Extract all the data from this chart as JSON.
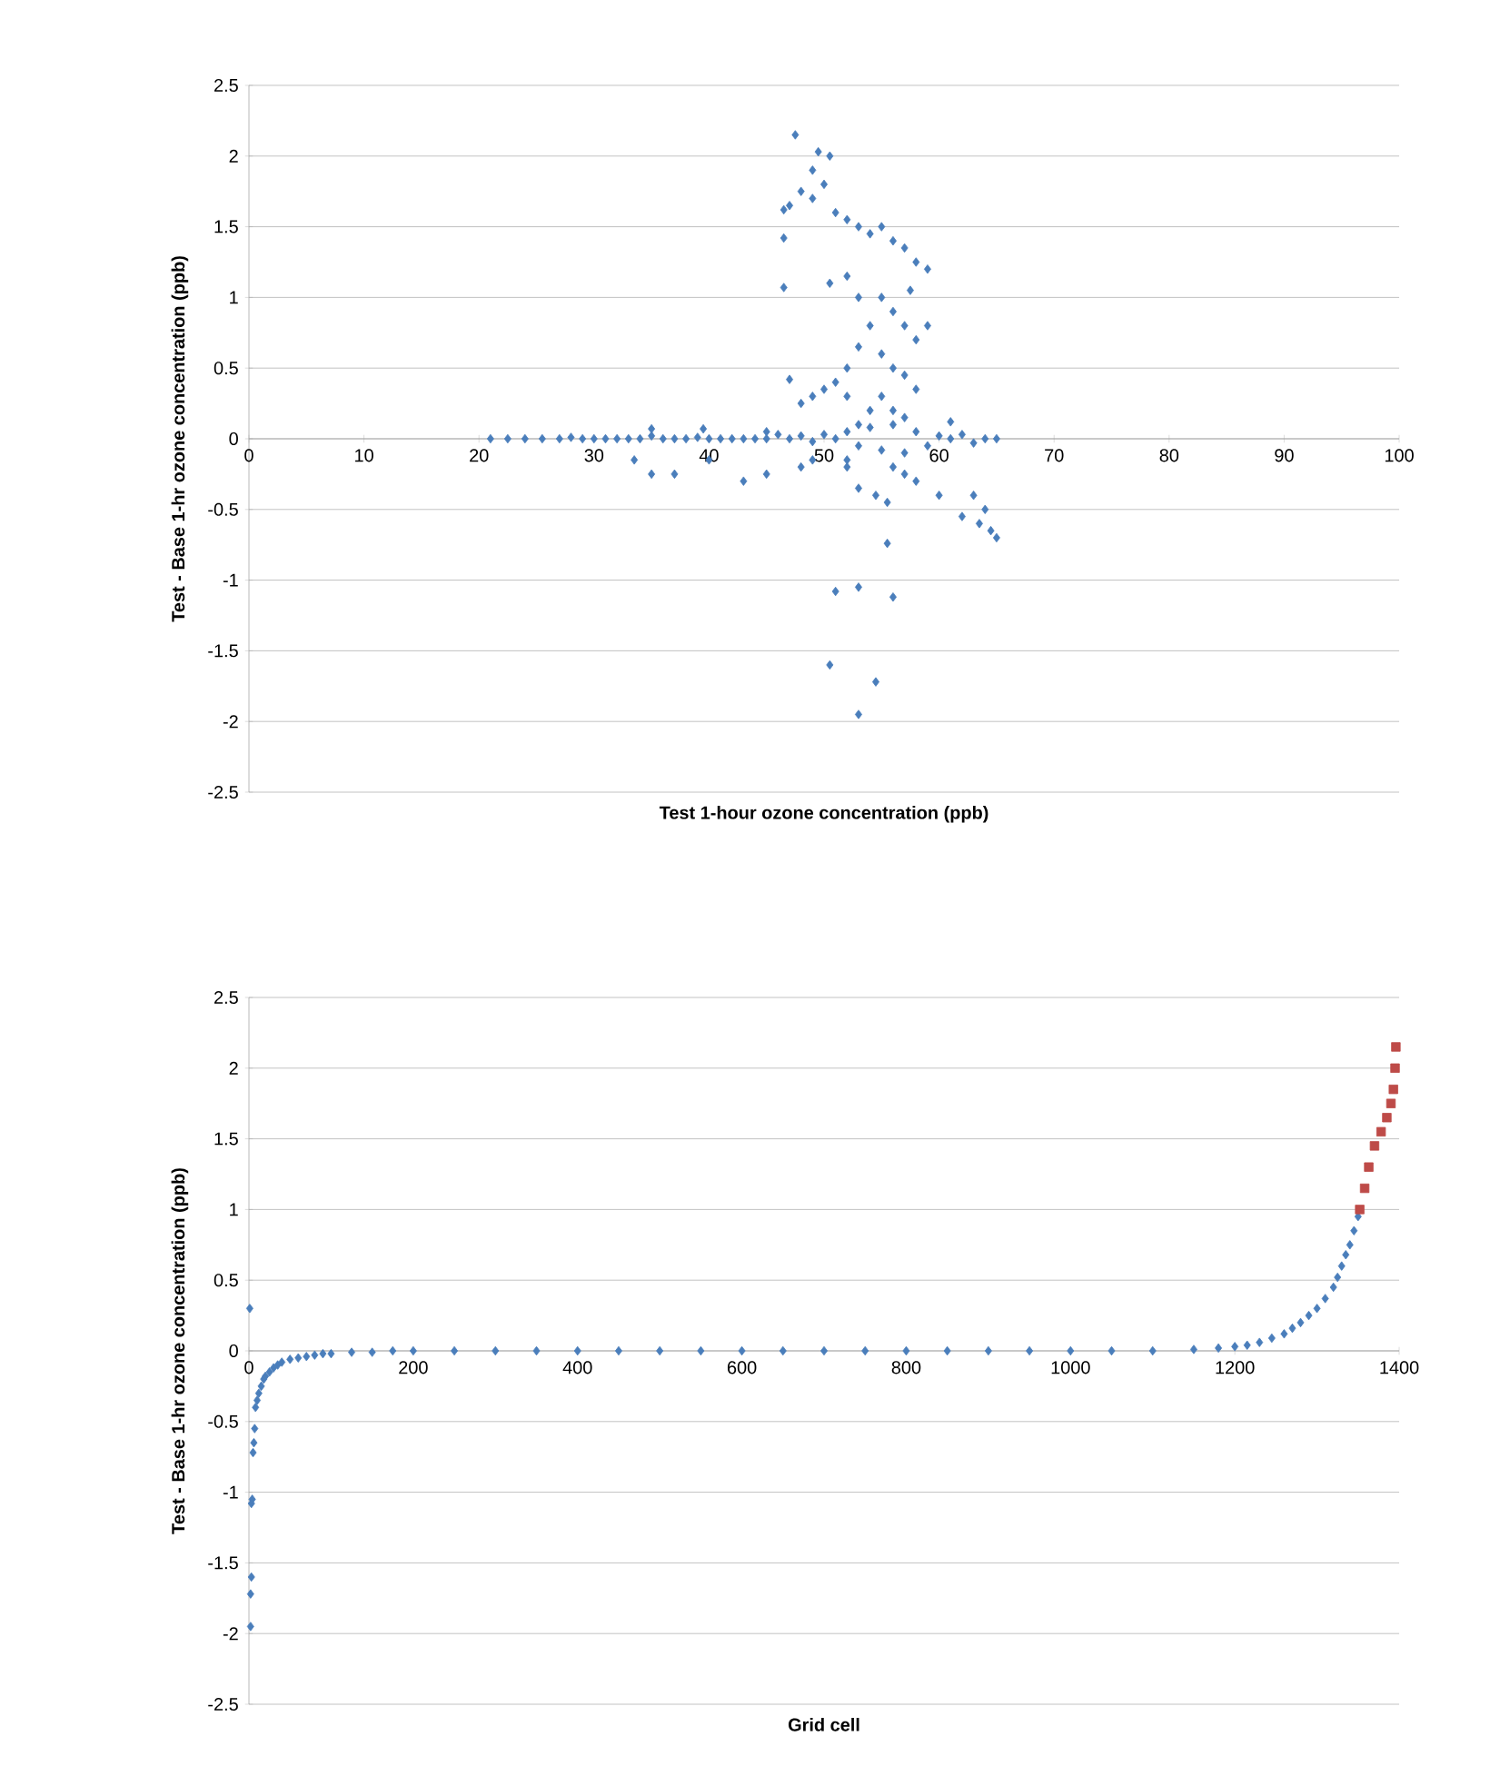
{
  "chart_data": [
    {
      "type": "scatter",
      "xlabel": "Test 1-hour ozone concentration (ppb)",
      "ylabel": "Test - Base 1-hr ozone concentration (ppb)",
      "xlim": [
        0,
        100
      ],
      "ylim": [
        -2.5,
        2.5
      ],
      "xticks": [
        0,
        10,
        20,
        30,
        40,
        50,
        60,
        70,
        80,
        90,
        100
      ],
      "yticks": [
        -2.5,
        -2,
        -1.5,
        -1,
        -0.5,
        0,
        0.5,
        1,
        1.5,
        2,
        2.5
      ],
      "grid": "y",
      "marker": "diamond",
      "series": [
        {
          "color": "#4a7ebb",
          "x": [
            21,
            22.5,
            24,
            25.5,
            27,
            28,
            29,
            30,
            31,
            32,
            33,
            34,
            35,
            36,
            37,
            38,
            39,
            40,
            41,
            42,
            43,
            44,
            45,
            46,
            47,
            48,
            49,
            50,
            51,
            52,
            53,
            54,
            55,
            56,
            57,
            58,
            59,
            60,
            61,
            62,
            63,
            64,
            65,
            47.5,
            49.5,
            50.5,
            49,
            48,
            49,
            50,
            46.5,
            47,
            46.5,
            51,
            52,
            53,
            54,
            55,
            56,
            57,
            58,
            59,
            46.5,
            50.5,
            52,
            53,
            55,
            56,
            57,
            58,
            59,
            57.5,
            54,
            53,
            52,
            55,
            56,
            57,
            58,
            55,
            54,
            56,
            57,
            47,
            48,
            49,
            50,
            51,
            52,
            53,
            33.5,
            35,
            37,
            40,
            43,
            45,
            48,
            49,
            53,
            54.5,
            55.5,
            60,
            62,
            63.5,
            64.5,
            65,
            63,
            64,
            55.5,
            51,
            53,
            56,
            50.5,
            54.5,
            53,
            56,
            57,
            58,
            52,
            35,
            39.5,
            45,
            52,
            61
          ],
          "values": [
            0,
            0,
            0,
            0,
            0,
            0.01,
            0,
            0,
            0,
            0,
            0,
            0,
            0.02,
            0,
            0,
            0,
            0.01,
            0,
            0,
            0,
            0,
            0,
            0,
            0.03,
            0,
            0.02,
            -0.02,
            0.03,
            0,
            0.05,
            -0.05,
            0.08,
            -0.08,
            0.1,
            -0.1,
            0.05,
            -0.05,
            0.02,
            0,
            0.03,
            -0.03,
            0,
            0,
            2.15,
            2.03,
            2.0,
            1.9,
            1.75,
            1.7,
            1.8,
            1.62,
            1.65,
            1.42,
            1.6,
            1.55,
            1.5,
            1.45,
            1.5,
            1.4,
            1.35,
            1.25,
            1.2,
            1.07,
            1.1,
            1.15,
            1.0,
            1.0,
            0.9,
            0.8,
            0.7,
            0.8,
            1.05,
            0.8,
            0.65,
            0.5,
            0.6,
            0.5,
            0.45,
            0.35,
            0.3,
            0.2,
            0.2,
            0.15,
            0.42,
            0.25,
            0.3,
            0.35,
            0.4,
            0.3,
            0.1,
            -0.15,
            -0.25,
            -0.25,
            -0.15,
            -0.3,
            -0.25,
            -0.2,
            -0.15,
            -0.35,
            -0.4,
            -0.45,
            -0.4,
            -0.55,
            -0.6,
            -0.65,
            -0.7,
            -0.4,
            -0.5,
            -0.74,
            -1.08,
            -1.05,
            -1.12,
            -1.6,
            -1.72,
            -1.95,
            -0.2,
            -0.25,
            -0.3,
            -0.15,
            0.07,
            0.07,
            0.05,
            -0.2,
            0.12
          ]
        }
      ]
    },
    {
      "type": "scatter",
      "xlabel": "Grid cell",
      "ylabel": "Test - Base 1-hr ozone concentration (ppb)",
      "xlim": [
        0,
        1400
      ],
      "ylim": [
        -2.5,
        2.5
      ],
      "xticks": [
        0,
        200,
        400,
        600,
        800,
        1000,
        1200,
        1400
      ],
      "yticks": [
        -2.5,
        -2,
        -1.5,
        -1,
        -0.5,
        0,
        0.5,
        1,
        1.5,
        2,
        2.5
      ],
      "grid": "y",
      "marker": "diamond",
      "series": [
        {
          "color": "#4a7ebb",
          "marker": "diamond",
          "x": [
            1,
            2,
            2,
            3,
            3,
            4,
            5,
            6,
            7,
            8,
            10,
            12,
            15,
            18,
            20,
            25,
            30,
            35,
            40,
            50,
            60,
            70,
            80,
            90,
            100,
            125,
            150,
            175,
            200,
            250,
            300,
            350,
            400,
            450,
            500,
            550,
            600,
            650,
            700,
            750,
            800,
            850,
            900,
            950,
            1000,
            1050,
            1100,
            1150,
            1180,
            1200,
            1215,
            1230,
            1245,
            1260,
            1270,
            1280,
            1290,
            1300,
            1310,
            1320,
            1325,
            1330,
            1335,
            1340,
            1345,
            1350
          ],
          "values": [
            0.3,
            -1.95,
            -1.72,
            -1.6,
            -1.08,
            -1.05,
            -0.72,
            -0.65,
            -0.55,
            -0.4,
            -0.35,
            -0.3,
            -0.25,
            -0.2,
            -0.18,
            -0.15,
            -0.12,
            -0.1,
            -0.08,
            -0.06,
            -0.05,
            -0.04,
            -0.03,
            -0.02,
            -0.02,
            -0.01,
            -0.01,
            0,
            0,
            0,
            0,
            0,
            0,
            0,
            0,
            0,
            0,
            0,
            0,
            0,
            0,
            0,
            0,
            0,
            0,
            0,
            0,
            0.01,
            0.02,
            0.03,
            0.04,
            0.06,
            0.09,
            0.12,
            0.16,
            0.2,
            0.25,
            0.3,
            0.37,
            0.45,
            0.52,
            0.6,
            0.68,
            0.75,
            0.85,
            0.95
          ]
        },
        {
          "color": "#be4b48",
          "marker": "square",
          "x": [
            1352,
            1358,
            1363,
            1370,
            1378,
            1385,
            1390,
            1393,
            1395,
            1396
          ],
          "values": [
            1.0,
            1.15,
            1.3,
            1.45,
            1.55,
            1.65,
            1.75,
            1.85,
            2.0,
            2.15
          ]
        }
      ]
    }
  ]
}
